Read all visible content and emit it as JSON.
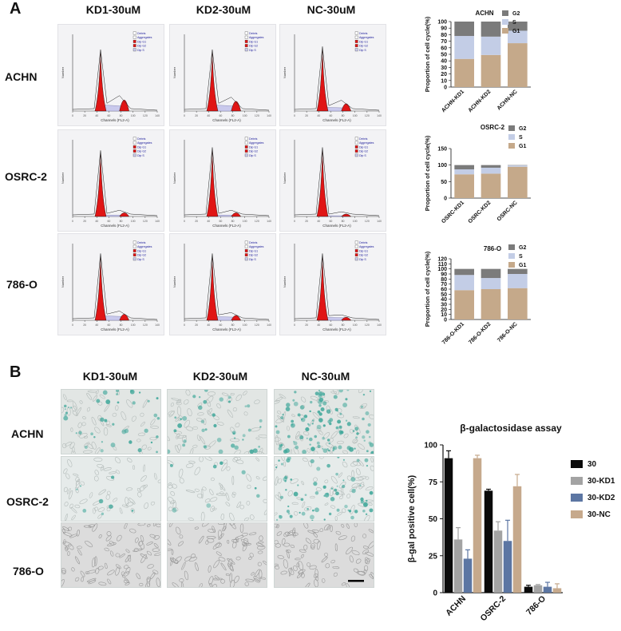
{
  "panels": {
    "a_letter": "A",
    "b_letter": "B",
    "columns": [
      "KD1-30uM",
      "KD2-30uM",
      "NC-30uM"
    ],
    "rows": [
      "ACHN",
      "OSRC-2",
      "786-O"
    ]
  },
  "histogram": {
    "legend": [
      "Debris",
      "Aggregates",
      "Dip G1",
      "Dip G2",
      "Dip S"
    ],
    "xlabel": "Channels (FL2-A)",
    "ylabel": "Number",
    "xticks": [
      "0",
      "20",
      "40",
      "60",
      "80",
      "100",
      "120",
      "140"
    ]
  },
  "colors": {
    "g1": "#c5a98a",
    "s": "#c3cde6",
    "g2": "#7b7b7b",
    "hist_red": "#e01515",
    "hist_s": "#c9c9ec",
    "bar_30": "#0a0a0a",
    "bar_kd1": "#a3a3a3",
    "bar_kd2": "#5c76a3",
    "bar_nc": "#c6a98c"
  },
  "chart_data": [
    {
      "type": "bar",
      "stacked": true,
      "title": "ACHN",
      "ylabel": "Proportion of cell cycle(%)",
      "ylim": [
        0,
        100
      ],
      "yticks": [
        0,
        10,
        20,
        30,
        40,
        50,
        60,
        70,
        80,
        90,
        100
      ],
      "categories": [
        "ACHN-KD1",
        "ACHN-KD2",
        "ACHN-NC"
      ],
      "series": [
        {
          "name": "G1",
          "values": [
            43,
            49,
            67
          ]
        },
        {
          "name": "S",
          "values": [
            35,
            28,
            19
          ]
        },
        {
          "name": "G2",
          "values": [
            22,
            23,
            14
          ]
        }
      ],
      "legend": [
        "G2",
        "S",
        "G1"
      ],
      "legend_position": "top-right"
    },
    {
      "type": "bar",
      "stacked": true,
      "title": "OSRC-2",
      "ylabel": "Proportion of cell cycle(%)",
      "ylim": [
        0,
        150
      ],
      "yticks": [
        0,
        50,
        100,
        150
      ],
      "categories": [
        "OSRC-KD1",
        "OSRC-KD2",
        "OSRC-NC"
      ],
      "series": [
        {
          "name": "G1",
          "values": [
            72,
            74,
            95
          ]
        },
        {
          "name": "S",
          "values": [
            15,
            18,
            4
          ]
        },
        {
          "name": "G2",
          "values": [
            13,
            8,
            1
          ]
        }
      ],
      "legend": [
        "G2",
        "S",
        "G1"
      ],
      "legend_position": "top-right"
    },
    {
      "type": "bar",
      "stacked": true,
      "title": "786-O",
      "ylabel": "Proportion of cell cycle(%)",
      "ylim": [
        0,
        120
      ],
      "yticks": [
        0,
        10,
        20,
        30,
        40,
        50,
        60,
        70,
        80,
        90,
        100,
        110,
        120
      ],
      "categories": [
        "786-O-KD1",
        "786-O-KD2",
        "786-O-NC"
      ],
      "series": [
        {
          "name": "G1",
          "values": [
            58,
            60,
            62
          ]
        },
        {
          "name": "S",
          "values": [
            30,
            22,
            28
          ]
        },
        {
          "name": "G2",
          "values": [
            12,
            18,
            10
          ]
        }
      ],
      "legend": [
        "G2",
        "S",
        "G1"
      ],
      "legend_position": "top-right"
    },
    {
      "type": "bar",
      "title": "β-galactosidase assay",
      "ylabel": "β-gal positive cell(%)",
      "ylim": [
        0,
        100
      ],
      "yticks": [
        0,
        25,
        50,
        75,
        100
      ],
      "categories": [
        "ACHN",
        "OSRC-2",
        "786-O"
      ],
      "series": [
        {
          "name": "30",
          "values": [
            91,
            69,
            4
          ],
          "errors": [
            5,
            1,
            1
          ]
        },
        {
          "name": "30-KD1",
          "values": [
            36,
            42,
            5
          ],
          "errors": [
            8,
            6,
            0.5
          ]
        },
        {
          "name": "30-KD2",
          "values": [
            23,
            35,
            4
          ],
          "errors": [
            6,
            14,
            3
          ]
        },
        {
          "name": "30-NC",
          "values": [
            91,
            72,
            3
          ],
          "errors": [
            2,
            8,
            3
          ]
        }
      ],
      "legend_position": "right"
    }
  ]
}
